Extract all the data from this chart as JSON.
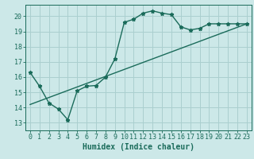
{
  "title": "",
  "xlabel": "Humidex (Indice chaleur)",
  "ylabel": "",
  "bg_color": "#cce8e8",
  "grid_color": "#aacfcf",
  "line_color": "#1a6b5a",
  "xlim": [
    -0.5,
    23.5
  ],
  "ylim": [
    12.5,
    20.75
  ],
  "yticks": [
    13,
    14,
    15,
    16,
    17,
    18,
    19,
    20
  ],
  "xticks": [
    0,
    1,
    2,
    3,
    4,
    5,
    6,
    7,
    8,
    9,
    10,
    11,
    12,
    13,
    14,
    15,
    16,
    17,
    18,
    19,
    20,
    21,
    22,
    23
  ],
  "curve1_x": [
    0,
    1,
    2,
    3,
    4,
    5,
    6,
    7,
    8,
    9,
    10,
    11,
    12,
    13,
    14,
    15,
    16,
    17,
    18,
    19,
    20,
    21,
    22,
    23
  ],
  "curve1_y": [
    16.3,
    15.4,
    14.3,
    13.9,
    13.2,
    15.1,
    15.4,
    15.45,
    16.0,
    17.2,
    19.6,
    19.8,
    20.2,
    20.35,
    20.2,
    20.1,
    19.3,
    19.1,
    19.2,
    19.5,
    19.5,
    19.5,
    19.5,
    19.5
  ],
  "curve2_x": [
    0,
    23
  ],
  "curve2_y": [
    14.2,
    19.5
  ],
  "marker_size": 3.5,
  "font_color": "#1a6b5a",
  "xlabel_fontsize": 7,
  "tick_fontsize": 6.0
}
